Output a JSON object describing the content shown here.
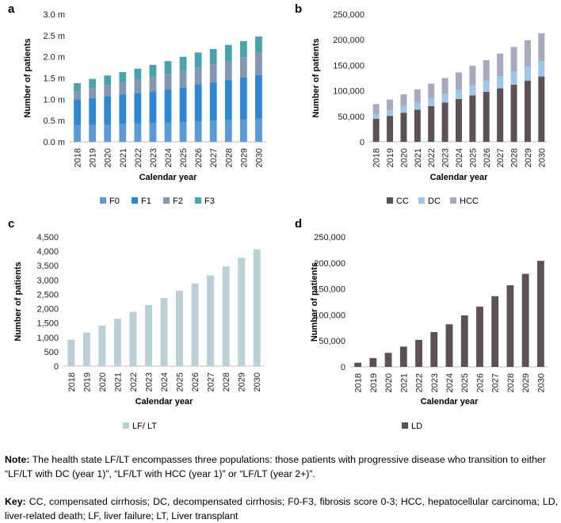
{
  "chart_data": [
    {
      "panel": "a",
      "type": "bar",
      "stacked": true,
      "categories": [
        "2018",
        "2019",
        "2020",
        "2021",
        "2022",
        "2023",
        "2024",
        "2025",
        "2026",
        "2027",
        "2028",
        "2029",
        "2030"
      ],
      "series": [
        {
          "name": "F0",
          "color": "#5b9bd5",
          "values": [
            0.39,
            0.4,
            0.41,
            0.42,
            0.43,
            0.44,
            0.45,
            0.46,
            0.48,
            0.49,
            0.51,
            0.53,
            0.55
          ]
        },
        {
          "name": "F1",
          "color": "#2e86d4",
          "values": [
            0.61,
            0.63,
            0.66,
            0.69,
            0.72,
            0.75,
            0.78,
            0.82,
            0.87,
            0.91,
            0.95,
            0.98,
            1.02
          ]
        },
        {
          "name": "F2",
          "color": "#8497b0",
          "values": [
            0.19,
            0.23,
            0.26,
            0.29,
            0.32,
            0.34,
            0.36,
            0.39,
            0.4,
            0.42,
            0.45,
            0.48,
            0.53
          ]
        },
        {
          "name": "F3",
          "color": "#4aa3ac",
          "values": [
            0.19,
            0.22,
            0.23,
            0.24,
            0.25,
            0.28,
            0.31,
            0.33,
            0.35,
            0.36,
            0.37,
            0.38,
            0.38
          ]
        }
      ],
      "ylim": [
        0,
        3.0
      ],
      "yticks": [
        "0.0 m",
        "0.5 m",
        "1.0 m",
        "1.5 m",
        "2.0 m",
        "2.5 m",
        "3.0 m"
      ],
      "ylabel": "Number of patients",
      "xlabel": "Calendar year",
      "legend": [
        "F0",
        "F1",
        "F2",
        "F3"
      ]
    },
    {
      "panel": "b",
      "type": "bar",
      "stacked": true,
      "categories": [
        "2018",
        "2019",
        "2020",
        "2021",
        "2022",
        "2023",
        "2024",
        "2025",
        "2026",
        "2027",
        "2028",
        "2029",
        "2030"
      ],
      "series": [
        {
          "name": "CC",
          "color": "#5c5157",
          "values": [
            45000,
            51000,
            57000,
            63000,
            70000,
            77000,
            84000,
            91000,
            98000,
            105000,
            112000,
            120000,
            128000
          ]
        },
        {
          "name": "DC",
          "color": "#9ec6e6",
          "values": [
            10000,
            11000,
            13000,
            14000,
            15000,
            17000,
            18000,
            20000,
            22000,
            24000,
            26000,
            28000,
            30000
          ]
        },
        {
          "name": "HCC",
          "color": "#a7a9bf",
          "values": [
            19000,
            21000,
            23000,
            26000,
            29000,
            31000,
            34000,
            38000,
            40000,
            44000,
            48000,
            51000,
            55000
          ]
        }
      ],
      "ylim": [
        0,
        250000
      ],
      "yticks": [
        "0",
        "50,000",
        "100,000",
        "150,000",
        "200,000",
        "250,000"
      ],
      "ylabel": "Number of patients",
      "xlabel": "Calendar year",
      "legend": [
        "CC",
        "DC",
        "HCC"
      ]
    },
    {
      "panel": "c",
      "type": "bar",
      "stacked": false,
      "categories": [
        "2018",
        "2019",
        "2020",
        "2021",
        "2022",
        "2023",
        "2024",
        "2025",
        "2026",
        "2027",
        "2028",
        "2029",
        "2030"
      ],
      "series": [
        {
          "name": "LF/ LT",
          "color": "#b9d1d6",
          "values": [
            920,
            1170,
            1410,
            1650,
            1890,
            2130,
            2370,
            2630,
            2880,
            3160,
            3470,
            3770,
            4070
          ]
        }
      ],
      "ylim": [
        0,
        4500
      ],
      "yticks": [
        "0",
        "500",
        "1,000",
        "1,500",
        "2,000",
        "2,500",
        "3,000",
        "3,500",
        "4,000",
        "4,500"
      ],
      "ylabel": "Number of patients",
      "xlabel": "Calendar year",
      "legend": [
        "LF/ LT"
      ]
    },
    {
      "panel": "d",
      "type": "bar",
      "stacked": false,
      "categories": [
        "2018",
        "2019",
        "2020",
        "2021",
        "2022",
        "2023",
        "2024",
        "2025",
        "2026",
        "2027",
        "2028",
        "2029",
        "2030"
      ],
      "series": [
        {
          "name": "LD",
          "color": "#5c5157",
          "values": [
            8000,
            17000,
            27000,
            39000,
            52000,
            67000,
            82000,
            99000,
            116000,
            136000,
            157000,
            179000,
            204000
          ]
        }
      ],
      "ylim": [
        0,
        250000
      ],
      "yticks": [
        "0",
        "50,000",
        "100,000",
        "150,000",
        "200,000",
        "250,000"
      ],
      "ylabel": "Number of patients",
      "xlabel": "Calendar year",
      "legend": [
        "LD"
      ]
    }
  ],
  "note": {
    "label": "Note:",
    "text": " The health state LF/LT encompasses three populations: those patients with progressive disease who transition to either “LF/LT with DC (year 1)”, “LF/LT with HCC (year 1)” or “LF/LT (year 2+)”."
  },
  "key": {
    "label": "Key:",
    "text": " CC, compensated cirrhosis; DC, decompensated cirrhosis; F0-F3, fibrosis score 0-3; HCC, hepatocellular carcinoma; LD, liver-related death; LF, liver failure; LT, Liver transplant"
  }
}
